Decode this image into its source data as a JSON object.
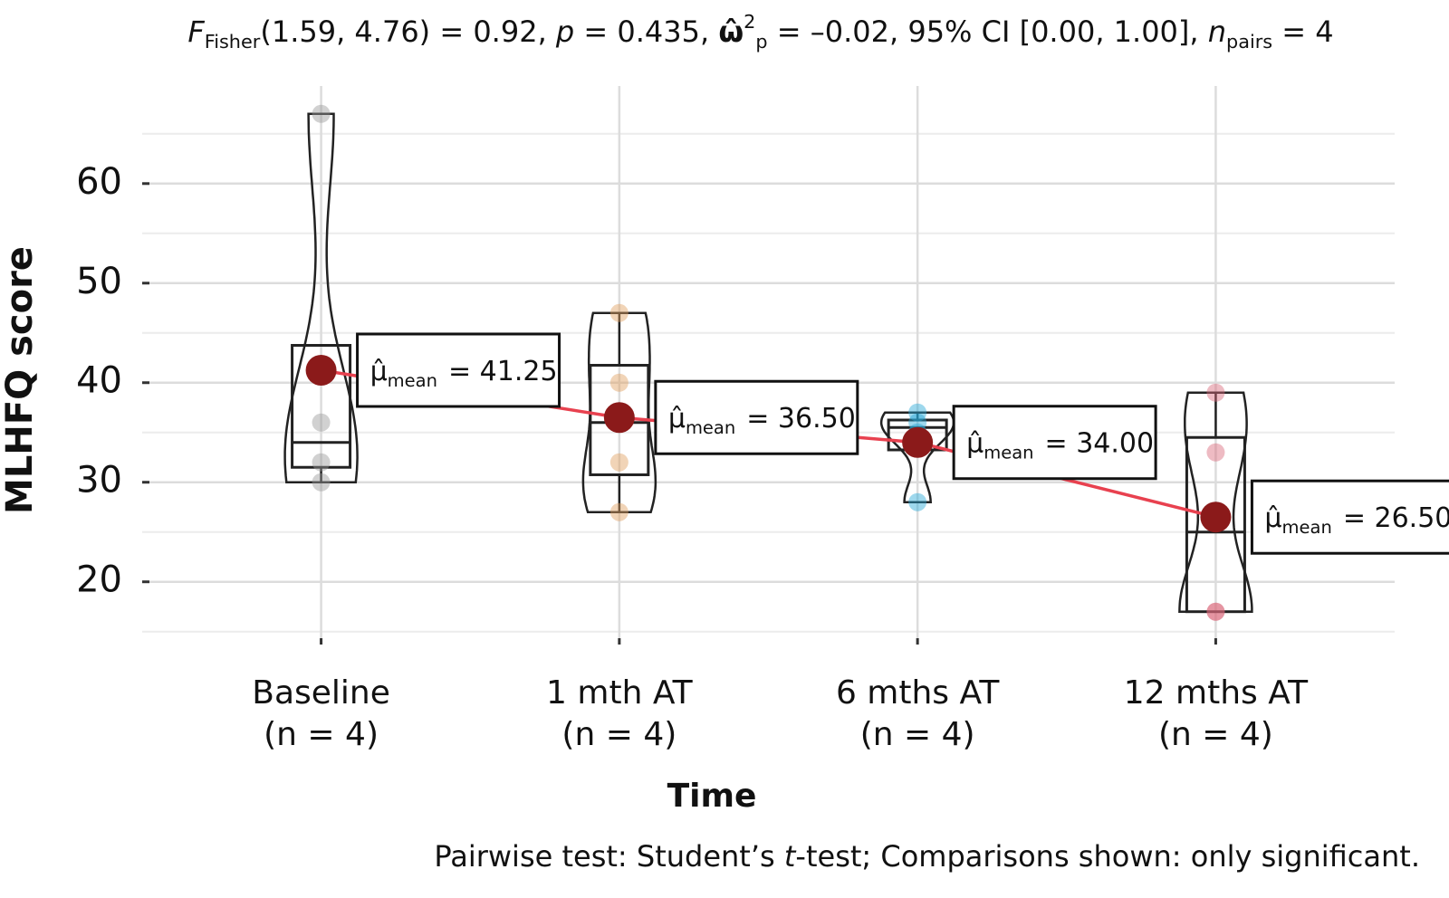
{
  "chart_data": {
    "type": "violin-box",
    "subtitle": [
      {
        "text": "F",
        "style": "italic"
      },
      {
        "text": "Fisher",
        "style": "sub"
      },
      {
        "text": "(1.59, 4.76) = 0.92, ",
        "style": "normal"
      },
      {
        "text": "p",
        "style": "italic"
      },
      {
        "text": " = 0.435, ",
        "style": "normal"
      },
      {
        "text": "ω̂",
        "style": "bold"
      },
      {
        "text": "2",
        "style": "sup"
      },
      {
        "text": "p",
        "style": "sub"
      },
      {
        "text": " = –0.02, 95% CI [0.00, 1.00], ",
        "style": "normal"
      },
      {
        "text": "n",
        "style": "italic"
      },
      {
        "text": "pairs",
        "style": "sub"
      },
      {
        "text": " = 4",
        "style": "normal"
      }
    ],
    "caption": [
      {
        "text": "Pairwise test: Student’s ",
        "style": "normal"
      },
      {
        "text": "t",
        "style": "italic"
      },
      {
        "text": "-test; Comparisons shown: only significant.",
        "style": "normal"
      }
    ],
    "x_label": "Time",
    "y_label": "MLHFQ score",
    "categories": [
      "Baseline",
      "1 mth AT",
      "6 mths AT",
      "12 mths AT"
    ],
    "n_labels": [
      "(n = 4)",
      "(n = 4)",
      "(n = 4)",
      "(n = 4)"
    ],
    "points": [
      [
        67,
        36,
        32,
        30
      ],
      [
        47,
        40,
        32,
        27
      ],
      [
        37,
        36,
        35,
        28
      ],
      [
        39,
        33,
        17,
        17
      ]
    ],
    "point_colors": [
      "#9a9a9a",
      "#e0a060",
      "#29a9d6",
      "#d9687a"
    ],
    "boxes": [
      {
        "lower": 30,
        "q1": 31.5,
        "median": 34,
        "q3": 43.75,
        "upper": 43.75
      },
      {
        "lower": 27,
        "q1": 30.75,
        "median": 36,
        "q3": 41.75,
        "upper": 47
      },
      {
        "lower": 35,
        "q1": 33.25,
        "median": 35.5,
        "q3": 36.25,
        "upper": 37
      },
      {
        "lower": 17,
        "q1": 17,
        "median": 25,
        "q3": 34.5,
        "upper": 39
      }
    ],
    "means": {
      "values": [
        41.25,
        36.5,
        34,
        26.5
      ],
      "value_labels": [
        "= 41.25",
        "= 36.50",
        "= 34.00",
        "= 26.50"
      ],
      "symbol": "μ̂",
      "subscript": "mean",
      "color": "#8b1a1a",
      "line_color": "#e8414f"
    },
    "ylim": [
      13.7,
      69.8
    ],
    "yticks": [
      20,
      30,
      40,
      50,
      60
    ],
    "minor_grid": [
      15,
      25,
      35,
      45,
      55,
      65
    ],
    "grid": true
  }
}
